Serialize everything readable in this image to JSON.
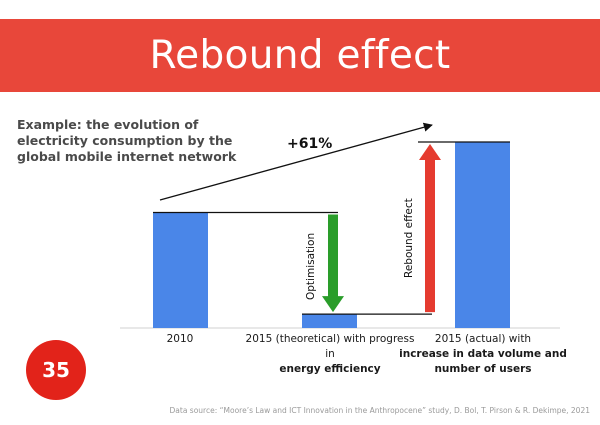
{
  "slide": {
    "title": "Rebound effect",
    "subtitle": "Example: the evolution of electricity consumption by the global mobile internet network",
    "number": "35",
    "source": "Data source: “Moore’s Law and ICT Innovation in the Anthropocene” study, D. Bol, T. Pirson & R. Dekimpe, 2021"
  },
  "colors": {
    "banner": "#e8473a",
    "bar": "#4a86e8",
    "optimisation_arrow": "#2a9d2a",
    "rebound_arrow": "#e53b2f",
    "number_badge": "#e2231a"
  },
  "chart_data": {
    "type": "bar",
    "categories": [
      "2010",
      "2015 (theoretical) with progress in energy efficiency",
      "2015 (actual) with increase in data volume and number of users"
    ],
    "values": [
      100,
      12,
      161
    ],
    "ylim": [
      0,
      170
    ],
    "grid": false,
    "legend": "none",
    "annotations": {
      "growth_label": "+61%",
      "optimisation_label": "Optimisation",
      "rebound_label": "Rebound effect"
    },
    "category_labels": [
      {
        "plain": "2010",
        "bold": ""
      },
      {
        "plain": "2015 (theoretical) with progress in",
        "bold": "energy efficiency"
      },
      {
        "plain": "2015 (actual) with",
        "bold": "increase in data volume and number of users"
      }
    ]
  }
}
